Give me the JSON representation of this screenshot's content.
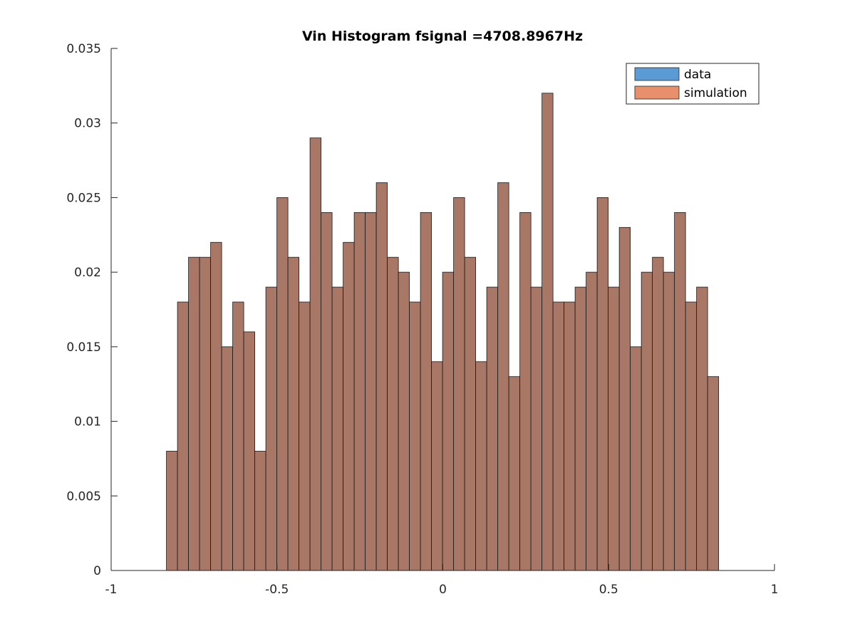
{
  "chart_data": {
    "type": "bar",
    "title": "Vin Histogram fsignal =4708.8967Hz",
    "xlabel": "",
    "ylabel": "",
    "xlim": [
      -1,
      1
    ],
    "ylim": [
      0,
      0.035
    ],
    "x_ticks": [
      -1,
      -0.5,
      0,
      0.5,
      1
    ],
    "x_tick_labels": [
      "-1",
      "-0.5",
      "0",
      "0.5",
      "1"
    ],
    "y_ticks": [
      0,
      0.005,
      0.01,
      0.015,
      0.02,
      0.025,
      0.03,
      0.035
    ],
    "y_tick_labels": [
      "0",
      "0.005",
      "0.01",
      "0.015",
      "0.02",
      "0.025",
      "0.03",
      "0.035"
    ],
    "grid": false,
    "legend_position": "top-right",
    "bin_edges_start": -0.8333,
    "bin_width": 0.0333,
    "series": [
      {
        "name": "data",
        "color": "#5b9bd5",
        "values": [
          0.008,
          0.018,
          0.021,
          0.021,
          0.022,
          0.015,
          0.018,
          0.016,
          0.008,
          0.019,
          0.025,
          0.021,
          0.018,
          0.029,
          0.024,
          0.019,
          0.022,
          0.024,
          0.024,
          0.026,
          0.021,
          0.02,
          0.018,
          0.024,
          0.014,
          0.02,
          0.025,
          0.021,
          0.014,
          0.019,
          0.026,
          0.013,
          0.024,
          0.019,
          0.032,
          0.018,
          0.018,
          0.019,
          0.02,
          0.025,
          0.019,
          0.023,
          0.015,
          0.02,
          0.021,
          0.02,
          0.024,
          0.018,
          0.019,
          0.013
        ]
      },
      {
        "name": "simulation",
        "color": "#e8906c",
        "values": [
          0.008,
          0.018,
          0.021,
          0.021,
          0.022,
          0.015,
          0.018,
          0.016,
          0.008,
          0.019,
          0.025,
          0.021,
          0.018,
          0.029,
          0.024,
          0.019,
          0.022,
          0.024,
          0.024,
          0.026,
          0.021,
          0.02,
          0.018,
          0.024,
          0.014,
          0.02,
          0.025,
          0.021,
          0.014,
          0.019,
          0.026,
          0.013,
          0.024,
          0.019,
          0.032,
          0.018,
          0.018,
          0.019,
          0.02,
          0.025,
          0.019,
          0.023,
          0.015,
          0.02,
          0.021,
          0.02,
          0.024,
          0.018,
          0.019,
          0.013
        ]
      }
    ],
    "overlap_color": "#a97766"
  }
}
